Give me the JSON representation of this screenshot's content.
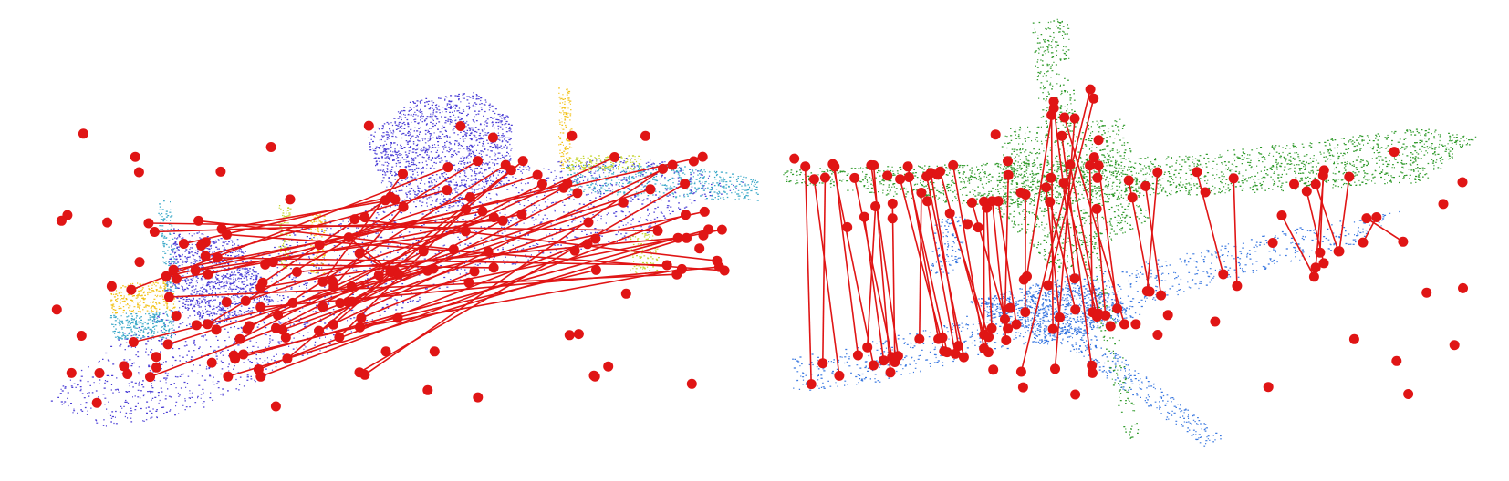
{
  "panels": [
    {
      "id": "left",
      "description_hidden": false,
      "colors": {
        "points_primary": "#4b3fd6",
        "points_secondary": "#3aa8c8",
        "points_tertiary": "#c6d633",
        "points_quaternary": "#f2c21a",
        "keypoints": "#e01515",
        "match_lines": "#e01515"
      }
    },
    {
      "id": "right",
      "colors": {
        "points_source": "#2f9a2a",
        "points_target": "#3a78e0",
        "keypoints": "#e01515",
        "match_lines": "#e01515"
      }
    }
  ]
}
